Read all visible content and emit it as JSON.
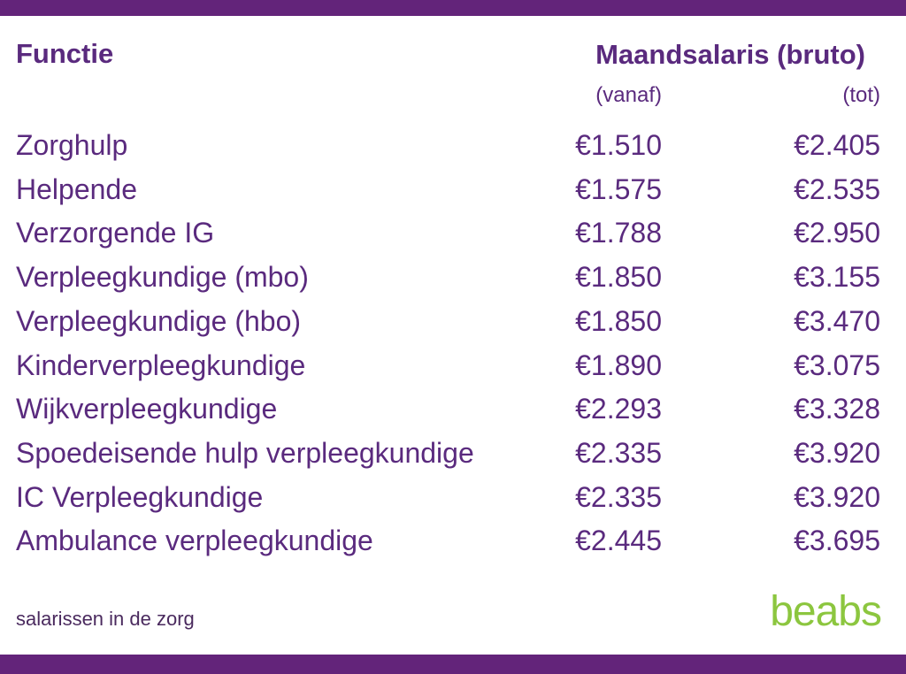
{
  "table": {
    "header": {
      "function": "Functie",
      "salary": "Maandsalaris (bruto)",
      "from": "(vanaf)",
      "to": "(tot)"
    },
    "rows": [
      [
        "Zorghulp",
        "€1.510",
        "€2.405"
      ],
      [
        "Helpende",
        "€1.575",
        "€2.535"
      ],
      [
        "Verzorgende IG",
        "€1.788",
        "€2.950"
      ],
      [
        "Verpleegkundige (mbo)",
        "€1.850",
        "€3.155"
      ],
      [
        "Verpleegkundige (hbo)",
        "€1.850",
        "€3.470"
      ],
      [
        "Kinderverpleegkundige",
        "€1.890",
        "€3.075"
      ],
      [
        "Wijkverpleegkundige",
        "€2.293",
        "€3.328"
      ],
      [
        "Spoedeisende hulp verpleegkundige",
        "€2.335",
        "€3.920"
      ],
      [
        "IC Verpleegkundige",
        "€2.335",
        "€3.920"
      ],
      [
        "Ambulance verpleegkundige",
        "€2.445",
        "€3.695"
      ]
    ]
  },
  "footer": {
    "caption": "salarissen in de zorg",
    "logo": "beabs"
  }
}
